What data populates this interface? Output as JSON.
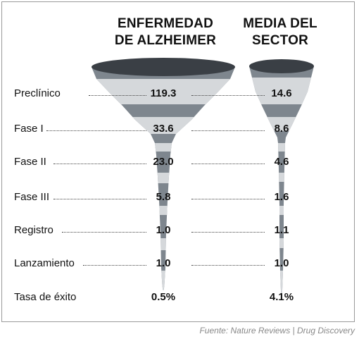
{
  "chart_data": {
    "type": "funnel",
    "columns": [
      "ENFERMEDAD\nDE ALZHEIMER",
      "MEDIA DEL\nSECTOR"
    ],
    "stages": [
      "Preclínico",
      "Fase I",
      "Fase II",
      "Fase III",
      "Registro",
      "Lanzamiento",
      "Tasa de éxito"
    ],
    "series": [
      {
        "name": "ENFERMEDAD\nDE ALZHEIMER",
        "values": [
          "119.3",
          "33.6",
          "23.0",
          "5.8",
          "1.0",
          "1.0",
          "0.5%"
        ]
      },
      {
        "name": "MEDIA DEL\nSECTOR",
        "values": [
          "14.6",
          "8.6",
          "4.6",
          "1.6",
          "1.1",
          "1.0",
          "4.1%"
        ]
      }
    ]
  },
  "source": "Fuente: Nature Reviews | Drug Discovery",
  "colors": {
    "rim": "#3a3f45",
    "band_dark": "#7e868e",
    "band_light": "#d5d8db"
  }
}
